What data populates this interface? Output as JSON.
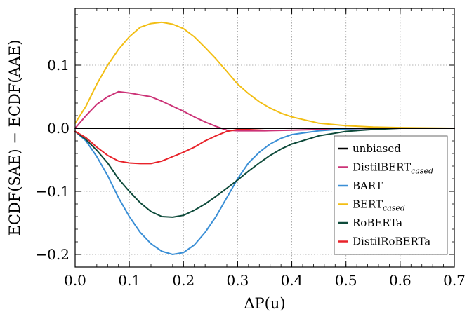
{
  "chart_data": {
    "type": "line",
    "title": "",
    "xlabel": "ΔP(u)",
    "ylabel": "ECDF(SAE) − ECDF(AAE)",
    "xlim": [
      0,
      0.7
    ],
    "ylim": [
      -0.22,
      0.19
    ],
    "xticks": [
      0.0,
      0.1,
      0.2,
      0.3,
      0.4,
      0.5,
      0.6,
      0.7
    ],
    "xtick_labels": [
      "0.0",
      "0.1",
      "0.2",
      "0.3",
      "0.4",
      "0.5",
      "0.6",
      "0.7"
    ],
    "yticks": [
      -0.2,
      -0.1,
      0.0,
      0.1
    ],
    "ytick_labels": [
      "−0.2",
      "−0.1",
      "0.0",
      "0.1"
    ],
    "grid": true,
    "legend_position": "bottom-right",
    "series": [
      {
        "name": "unbiased",
        "name_sub": "",
        "color": "#000000",
        "x": [
          0.0,
          0.7
        ],
        "y": [
          0.0,
          0.0
        ]
      },
      {
        "name": "DistilBERT",
        "name_sub": "cased",
        "color": "#cc3377",
        "x": [
          0.0,
          0.02,
          0.04,
          0.06,
          0.08,
          0.1,
          0.12,
          0.14,
          0.16,
          0.18,
          0.2,
          0.22,
          0.24,
          0.26,
          0.28,
          0.3,
          0.35,
          0.4,
          0.45,
          0.5,
          0.55,
          0.6,
          0.7
        ],
        "y": [
          0.0,
          0.02,
          0.038,
          0.05,
          0.058,
          0.056,
          0.053,
          0.05,
          0.043,
          0.035,
          0.027,
          0.018,
          0.01,
          0.003,
          -0.003,
          -0.004,
          -0.004,
          -0.003,
          -0.002,
          -0.001,
          -0.0005,
          0.0,
          0.0
        ]
      },
      {
        "name": "BART",
        "name_sub": "",
        "color": "#3b8fd6",
        "x": [
          0.0,
          0.02,
          0.04,
          0.06,
          0.08,
          0.1,
          0.12,
          0.14,
          0.16,
          0.18,
          0.2,
          0.22,
          0.24,
          0.26,
          0.28,
          0.3,
          0.32,
          0.34,
          0.36,
          0.38,
          0.4,
          0.45,
          0.5,
          0.55,
          0.6,
          0.7
        ],
        "y": [
          -0.005,
          -0.02,
          -0.045,
          -0.075,
          -0.11,
          -0.14,
          -0.165,
          -0.183,
          -0.195,
          -0.2,
          -0.197,
          -0.185,
          -0.165,
          -0.14,
          -0.11,
          -0.08,
          -0.055,
          -0.038,
          -0.025,
          -0.016,
          -0.01,
          -0.004,
          -0.001,
          0.0,
          0.0,
          0.0
        ]
      },
      {
        "name": "BERT",
        "name_sub": "cased",
        "color": "#f2be14",
        "x": [
          0.0,
          0.02,
          0.04,
          0.06,
          0.08,
          0.1,
          0.12,
          0.14,
          0.16,
          0.18,
          0.2,
          0.22,
          0.24,
          0.26,
          0.28,
          0.3,
          0.32,
          0.34,
          0.36,
          0.38,
          0.4,
          0.45,
          0.5,
          0.55,
          0.6,
          0.7
        ],
        "y": [
          0.008,
          0.035,
          0.07,
          0.1,
          0.125,
          0.145,
          0.16,
          0.166,
          0.168,
          0.165,
          0.158,
          0.145,
          0.128,
          0.11,
          0.09,
          0.07,
          0.055,
          0.042,
          0.032,
          0.024,
          0.018,
          0.008,
          0.004,
          0.002,
          0.001,
          0.0
        ]
      },
      {
        "name": "RoBERTa",
        "name_sub": "",
        "color": "#0d4a3a",
        "x": [
          0.0,
          0.02,
          0.04,
          0.06,
          0.08,
          0.1,
          0.12,
          0.14,
          0.16,
          0.18,
          0.2,
          0.22,
          0.24,
          0.26,
          0.28,
          0.3,
          0.32,
          0.34,
          0.36,
          0.38,
          0.4,
          0.45,
          0.5,
          0.55,
          0.6,
          0.7
        ],
        "y": [
          -0.005,
          -0.018,
          -0.035,
          -0.055,
          -0.08,
          -0.1,
          -0.118,
          -0.132,
          -0.14,
          -0.141,
          -0.138,
          -0.13,
          -0.12,
          -0.108,
          -0.095,
          -0.082,
          -0.068,
          -0.055,
          -0.043,
          -0.033,
          -0.025,
          -0.012,
          -0.005,
          -0.002,
          0.0,
          0.0
        ]
      },
      {
        "name": "DistilRoBERTa",
        "name_sub": "",
        "color": "#e8232a",
        "x": [
          0.0,
          0.02,
          0.04,
          0.06,
          0.08,
          0.1,
          0.12,
          0.14,
          0.16,
          0.18,
          0.2,
          0.22,
          0.24,
          0.26,
          0.28,
          0.3,
          0.35,
          0.4,
          0.45,
          0.5,
          0.55,
          0.6,
          0.7
        ],
        "y": [
          -0.005,
          -0.015,
          -0.03,
          -0.043,
          -0.052,
          -0.055,
          -0.056,
          -0.056,
          -0.052,
          -0.045,
          -0.038,
          -0.03,
          -0.02,
          -0.012,
          -0.005,
          -0.002,
          0.0,
          0.0,
          0.0,
          0.0,
          0.0,
          0.0,
          0.0
        ]
      }
    ]
  }
}
